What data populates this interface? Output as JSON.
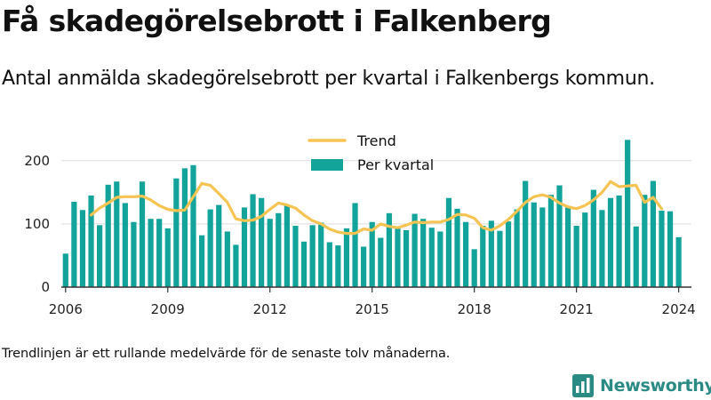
{
  "title": "Få skadegörelsebrott i Falkenberg",
  "subtitle": "Antal anmälda skadegörelsebrott per kvartal i Falkenbergs kommun.",
  "footnote": "Trendlinjen är ett rullande medelvärde för de senaste tolv månaderna.",
  "brand": {
    "name": "Newsworthy",
    "icon": "bar-chart-logo-icon"
  },
  "colors": {
    "bars": "#12a39a",
    "trend": "#f5c452",
    "grid": "#dddddd",
    "axis": "#333333",
    "brand": "#2a8a84"
  },
  "chart_data": {
    "type": "bar",
    "x_unit": "quarter",
    "xlim": [
      2005.875,
      2024.375
    ],
    "ylim": [
      0,
      220
    ],
    "grid": true,
    "legend_placement": "top-center",
    "x_ticks": [
      2006,
      2009,
      2012,
      2015,
      2018,
      2021,
      2024
    ],
    "x_tick_labels": [
      "2006",
      "2009",
      "2012",
      "2015",
      "2018",
      "2021",
      "2024"
    ],
    "y_ticks": [
      0,
      100,
      200
    ],
    "y_tick_labels": [
      "0",
      "100",
      "200"
    ],
    "legend": [
      "Trend",
      "Per kvartal"
    ],
    "series": [
      {
        "name": "Per kvartal",
        "kind": "bar",
        "start_year": 2006,
        "values": [
          53,
          135,
          122,
          145,
          98,
          162,
          167,
          133,
          103,
          167,
          108,
          108,
          93,
          172,
          188,
          193,
          82,
          123,
          130,
          88,
          67,
          126,
          147,
          141,
          108,
          117,
          130,
          97,
          72,
          98,
          102,
          71,
          66,
          93,
          133,
          64,
          103,
          78,
          117,
          93,
          90,
          116,
          108,
          94,
          88,
          141,
          124,
          103,
          60,
          97,
          105,
          89,
          104,
          123,
          168,
          134,
          126,
          146,
          161,
          126,
          97,
          118,
          154,
          122,
          141,
          145,
          233,
          96,
          146,
          168,
          121,
          120,
          79
        ],
        "quarters": [
          "2006 Q1",
          "…",
          "2024 Q1"
        ]
      },
      {
        "name": "Trend",
        "kind": "line",
        "start_year": 2006.75,
        "values": [
          114,
          125,
          133,
          142,
          143,
          143,
          144,
          138,
          129,
          123,
          121,
          122,
          143,
          164,
          161,
          148,
          134,
          108,
          105,
          106,
          112,
          123,
          133,
          130,
          125,
          114,
          105,
          100,
          92,
          87,
          85,
          85,
          92,
          90,
          100,
          96,
          94,
          98,
          103,
          102,
          103,
          103,
          107,
          115,
          114,
          109,
          94,
          90,
          97,
          107,
          120,
          134,
          143,
          146,
          142,
          133,
          127,
          124,
          129,
          138,
          150,
          167,
          159,
          160,
          161,
          134,
          142,
          124
        ]
      }
    ]
  }
}
